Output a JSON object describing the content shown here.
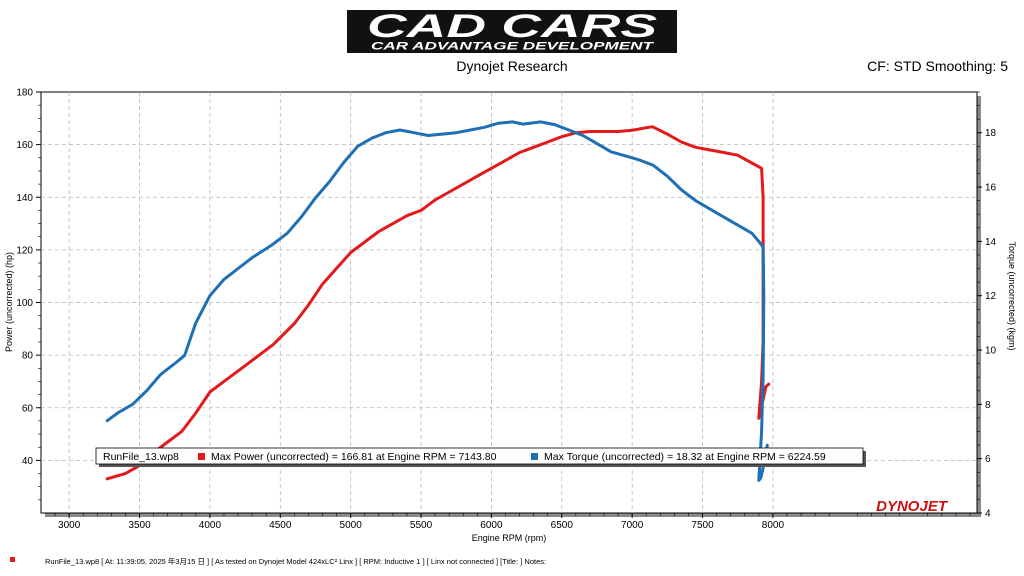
{
  "header": {
    "logo_main": "CAD CARS",
    "logo_sub": "CAR ADVANTAGE DEVELOPMENT",
    "subtitle": "Dynojet Research",
    "cf_text": "CF: STD Smoothing: 5"
  },
  "watermark": "DYNOJET",
  "chart_data": {
    "type": "line",
    "xlabel": "Engine RPM (rpm)",
    "ylabel_left": "Power (uncorrected) (hp)",
    "ylabel_right": "Torque (uncorrected) (kgm)",
    "xlim": [
      2800,
      9450
    ],
    "ylim_left": [
      20,
      180
    ],
    "ylim_right": [
      4,
      19.5
    ],
    "x_ticks": [
      3000,
      3500,
      4000,
      4500,
      5000,
      5500,
      6000,
      6500,
      7000,
      7500,
      8000
    ],
    "y_left_ticks": [
      40,
      60,
      80,
      100,
      120,
      140,
      160,
      180
    ],
    "y_right_ticks": [
      4,
      6,
      8,
      10,
      12,
      14,
      16,
      18
    ],
    "grid": true,
    "series": [
      {
        "name": "Max Power (uncorrected)",
        "axis": "left",
        "color": "#e31a1c",
        "points": [
          [
            3270,
            33
          ],
          [
            3400,
            35
          ],
          [
            3500,
            38
          ],
          [
            3600,
            43
          ],
          [
            3700,
            47
          ],
          [
            3800,
            51
          ],
          [
            3900,
            58
          ],
          [
            4000,
            66
          ],
          [
            4100,
            70
          ],
          [
            4200,
            74
          ],
          [
            4300,
            78
          ],
          [
            4450,
            84
          ],
          [
            4600,
            92
          ],
          [
            4700,
            99
          ],
          [
            4800,
            107
          ],
          [
            4900,
            113
          ],
          [
            5000,
            119
          ],
          [
            5100,
            123
          ],
          [
            5200,
            127
          ],
          [
            5300,
            130
          ],
          [
            5400,
            133
          ],
          [
            5500,
            135
          ],
          [
            5600,
            139
          ],
          [
            5700,
            142
          ],
          [
            5800,
            145
          ],
          [
            5900,
            148
          ],
          [
            6000,
            151
          ],
          [
            6100,
            154
          ],
          [
            6200,
            157
          ],
          [
            6300,
            159
          ],
          [
            6400,
            161
          ],
          [
            6500,
            163
          ],
          [
            6600,
            164.5
          ],
          [
            6700,
            165
          ],
          [
            6800,
            165
          ],
          [
            6900,
            165
          ],
          [
            7000,
            165.5
          ],
          [
            7143.8,
            166.81
          ],
          [
            7250,
            164
          ],
          [
            7350,
            161
          ],
          [
            7450,
            159
          ],
          [
            7550,
            158
          ],
          [
            7650,
            157
          ],
          [
            7750,
            156
          ],
          [
            7850,
            153
          ],
          [
            7920,
            151
          ],
          [
            7930,
            140
          ],
          [
            7930,
            115
          ],
          [
            7930,
            85
          ],
          [
            7920,
            70
          ],
          [
            7900,
            56
          ],
          [
            7925,
            62
          ],
          [
            7950,
            68
          ],
          [
            7970,
            69
          ]
        ]
      },
      {
        "name": "Max Torque (uncorrected)",
        "axis": "right",
        "color": "#1f6fb5",
        "points": [
          [
            3270,
            7.4
          ],
          [
            3350,
            7.7
          ],
          [
            3450,
            8.0
          ],
          [
            3550,
            8.5
          ],
          [
            3650,
            9.1
          ],
          [
            3750,
            9.5
          ],
          [
            3820,
            9.8
          ],
          [
            3900,
            11.0
          ],
          [
            4000,
            12.0
          ],
          [
            4100,
            12.6
          ],
          [
            4200,
            13.0
          ],
          [
            4300,
            13.4
          ],
          [
            4450,
            13.9
          ],
          [
            4550,
            14.3
          ],
          [
            4650,
            14.9
          ],
          [
            4750,
            15.6
          ],
          [
            4850,
            16.2
          ],
          [
            4950,
            16.9
          ],
          [
            5050,
            17.5
          ],
          [
            5150,
            17.8
          ],
          [
            5250,
            18.0
          ],
          [
            5350,
            18.1
          ],
          [
            5450,
            18.0
          ],
          [
            5550,
            17.9
          ],
          [
            5650,
            17.95
          ],
          [
            5750,
            18.0
          ],
          [
            5850,
            18.1
          ],
          [
            5950,
            18.2
          ],
          [
            6050,
            18.35
          ],
          [
            6150,
            18.4
          ],
          [
            6224.59,
            18.32
          ],
          [
            6350,
            18.4
          ],
          [
            6450,
            18.3
          ],
          [
            6550,
            18.1
          ],
          [
            6650,
            17.9
          ],
          [
            6750,
            17.6
          ],
          [
            6850,
            17.3
          ],
          [
            6950,
            17.15
          ],
          [
            7050,
            17.0
          ],
          [
            7150,
            16.8
          ],
          [
            7250,
            16.4
          ],
          [
            7350,
            15.9
          ],
          [
            7450,
            15.5
          ],
          [
            7550,
            15.2
          ],
          [
            7650,
            14.9
          ],
          [
            7750,
            14.6
          ],
          [
            7850,
            14.3
          ],
          [
            7900,
            14.0
          ],
          [
            7930,
            13.8
          ],
          [
            7935,
            12
          ],
          [
            7930,
            9
          ],
          [
            7920,
            7
          ],
          [
            7900,
            5.2
          ],
          [
            7915,
            5.3
          ],
          [
            7940,
            5.9
          ],
          [
            7960,
            6.5
          ]
        ]
      }
    ],
    "legend": {
      "file": "RunFile_13.wp8",
      "power_text": "Max Power (uncorrected) = 166.81 at Engine RPM = 7143.80",
      "torque_text": "Max Torque (uncorrected) = 18.32 at Engine RPM = 6224.59"
    }
  },
  "footer": {
    "text": "RunFile_13.wp8  [  At:  11:39:05,  2025 年3月15 日 ] [ As tested on Dynojet Model 424xLC² Linx ] [ RPM: Inductive 1 ] [ Linx not connected ] [Title: ]   Notes:"
  }
}
